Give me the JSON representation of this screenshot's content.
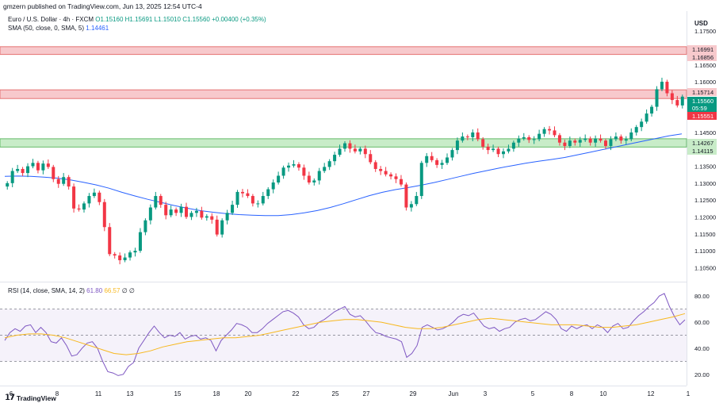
{
  "header": {
    "publish_line": "gmzern published on TradingView.com, Jun 13, 2025 12:54 UTC-4",
    "symbol": "Euro / U.S. Dollar · 4h · FXCM",
    "open": "O1.15160",
    "high": "H1.15691",
    "low": "L1.15010",
    "close": "C1.15560",
    "change": "+0.00400 (+0.35%)",
    "sma_label": "SMA (50, close, 0, SMA, 5)",
    "sma_value": "1.14461"
  },
  "rsi_legend": {
    "label": "RSI (14, close, SMA, 14, 2)",
    "rsi_value": "61.80",
    "rsi_ma_value": "66.57",
    "extra1": "∅",
    "extra2": "∅"
  },
  "footer": {
    "brand": "TradingView"
  },
  "colors": {
    "up": "#089981",
    "down": "#f23645",
    "sma": "#2962ff",
    "rsi": "#7e57c2",
    "rsi_ma": "#f7b81f",
    "resistance_zone": "#f7c9cc",
    "support_zone": "#c8ecc8"
  },
  "chart_data": [
    {
      "type": "candlestick",
      "ylabel": "USD",
      "ylim": [
        1.1025,
        1.1795
      ],
      "y_ticks": [
        "1.17500",
        "1.17000",
        "1.16500",
        "1.16000",
        "1.15500",
        "1.15000",
        "1.14500",
        "1.14000",
        "1.13500",
        "1.13000",
        "1.12500",
        "1.12000",
        "1.11500",
        "1.11000",
        "1.10500"
      ],
      "x_ticks": [
        "6",
        "8",
        "11",
        "13",
        "15",
        "18",
        "20",
        "22",
        "25",
        "27",
        "29",
        "Jun",
        "3",
        "5",
        "8",
        "10",
        "12",
        "1"
      ],
      "price_labels": [
        {
          "text": "1.16991",
          "kind": "resistance"
        },
        {
          "text": "1.16856",
          "kind": "resistance"
        },
        {
          "text": "1.15714",
          "kind": "resistance"
        },
        {
          "text": "1.15560",
          "kind": "last"
        },
        {
          "text": "05:59",
          "kind": "countdown"
        },
        {
          "text": "1.15551",
          "kind": "resistance"
        },
        {
          "text": "1.14267",
          "kind": "support"
        },
        {
          "text": "1.14115",
          "kind": "support"
        }
      ],
      "zones": [
        {
          "name": "resistance-upper",
          "from": 1.16856,
          "to": 1.16991,
          "kind": "resistance"
        },
        {
          "name": "resistance-lower",
          "from": 1.15551,
          "to": 1.15714,
          "kind": "resistance"
        },
        {
          "name": "support",
          "from": 1.14115,
          "to": 1.14267,
          "kind": "support"
        }
      ],
      "series": [
        {
          "name": "EURUSD",
          "closes": [
            1.13,
            1.1336,
            1.1342,
            1.133,
            1.135,
            1.136,
            1.1338,
            1.1358,
            1.1348,
            1.1312,
            1.1298,
            1.1318,
            1.129,
            1.1225,
            1.1222,
            1.124,
            1.1262,
            1.1272,
            1.1244,
            1.117,
            1.109,
            1.1086,
            1.1072,
            1.108,
            1.1095,
            1.11,
            1.1155,
            1.119,
            1.1228,
            1.1262,
            1.1236,
            1.1205,
            1.1222,
            1.1212,
            1.123,
            1.12,
            1.1212,
            1.1218,
            1.1198,
            1.1202,
            1.1192,
            1.1148,
            1.119,
            1.1212,
            1.1236,
            1.1274,
            1.127,
            1.1262,
            1.124,
            1.124,
            1.1262,
            1.1282,
            1.1302,
            1.1322,
            1.1346,
            1.1352,
            1.1356,
            1.1346,
            1.1322,
            1.1302,
            1.1308,
            1.1336,
            1.1348,
            1.1365,
            1.1384,
            1.1402,
            1.1418,
            1.1402,
            1.1394,
            1.1402,
            1.1386,
            1.1362,
            1.1342,
            1.1336,
            1.1326,
            1.132,
            1.1312,
            1.1296,
            1.1228,
            1.1238,
            1.1262,
            1.136,
            1.138,
            1.1368,
            1.1354,
            1.136,
            1.1376,
            1.1398,
            1.1426,
            1.1438,
            1.1436,
            1.145,
            1.143,
            1.1408,
            1.1398,
            1.1402,
            1.1386,
            1.1394,
            1.1402,
            1.142,
            1.1432,
            1.1436,
            1.1428,
            1.143,
            1.1446,
            1.146,
            1.1456,
            1.1442,
            1.142,
            1.141,
            1.1426,
            1.142,
            1.1428,
            1.1432,
            1.142,
            1.1432,
            1.1426,
            1.141,
            1.143,
            1.1438,
            1.1426,
            1.143,
            1.145,
            1.1466,
            1.1482,
            1.1506,
            1.1526,
            1.1578,
            1.16,
            1.1566,
            1.1546,
            1.153,
            1.1556
          ]
        },
        {
          "name": "SMA (50, close, 0, SMA, 5)",
          "values": [
            1.132,
            1.1321,
            1.132,
            1.1318,
            1.1315,
            1.131,
            1.1303,
            1.1295,
            1.1285,
            1.1273,
            1.1262,
            1.1252,
            1.1243,
            1.1234,
            1.1226,
            1.1219,
            1.1214,
            1.121,
            1.1207,
            1.1205,
            1.1204,
            1.1204,
            1.1207,
            1.1212,
            1.1219,
            1.1228,
            1.1239,
            1.1251,
            1.1263,
            1.1273,
            1.1281,
            1.1287,
            1.1294,
            1.1302,
            1.1311,
            1.132,
            1.1329,
            1.1337,
            1.1345,
            1.1352,
            1.1359,
            1.1365,
            1.137,
            1.1376,
            1.1384,
            1.1392,
            1.14,
            1.1408,
            1.1416,
            1.1424,
            1.1432,
            1.144,
            1.1446
          ]
        }
      ]
    },
    {
      "type": "line",
      "ylabel": "RSI",
      "ylim": [
        15,
        85
      ],
      "y_ticks": [
        "80.00",
        "60.00",
        "40.00",
        "20.00"
      ],
      "bands": {
        "upper": 70,
        "lower": 30,
        "middle": 50
      },
      "series": [
        {
          "name": "RSI",
          "values": [
            46,
            52,
            55,
            53,
            57,
            58,
            52,
            56,
            52,
            45,
            44,
            48,
            42,
            34,
            35,
            40,
            44,
            45,
            40,
            30,
            22,
            21,
            19,
            20,
            26,
            29,
            40,
            46,
            52,
            57,
            52,
            48,
            50,
            49,
            52,
            47,
            49,
            50,
            47,
            48,
            46,
            38,
            46,
            50,
            54,
            59,
            58,
            56,
            52,
            52,
            55,
            59,
            62,
            65,
            68,
            69,
            67,
            64,
            58,
            55,
            56,
            60,
            62,
            65,
            68,
            70,
            72,
            66,
            64,
            65,
            61,
            56,
            52,
            51,
            49,
            48,
            47,
            45,
            33,
            36,
            42,
            56,
            58,
            56,
            54,
            55,
            57,
            60,
            64,
            66,
            65,
            67,
            62,
            57,
            55,
            56,
            53,
            55,
            56,
            60,
            62,
            63,
            61,
            62,
            65,
            68,
            66,
            62,
            55,
            53,
            57,
            55,
            57,
            58,
            55,
            58,
            56,
            52,
            57,
            59,
            55,
            56,
            61,
            65,
            68,
            72,
            75,
            80,
            82,
            72,
            64,
            58,
            61.8
          ]
        },
        {
          "name": "RSI-based MA",
          "values": [
            48,
            50,
            51,
            51,
            50,
            48,
            45,
            42,
            39,
            36,
            35,
            36,
            38,
            41,
            43,
            45,
            46,
            47,
            48,
            48,
            49,
            50,
            52,
            54,
            56,
            58,
            60,
            61,
            62,
            62,
            61,
            60,
            58,
            56,
            55,
            55,
            56,
            58,
            60,
            62,
            63,
            62,
            61,
            60,
            59,
            58,
            58,
            58,
            57,
            56,
            56,
            57,
            58,
            60,
            62,
            64,
            66.57
          ]
        }
      ]
    }
  ]
}
